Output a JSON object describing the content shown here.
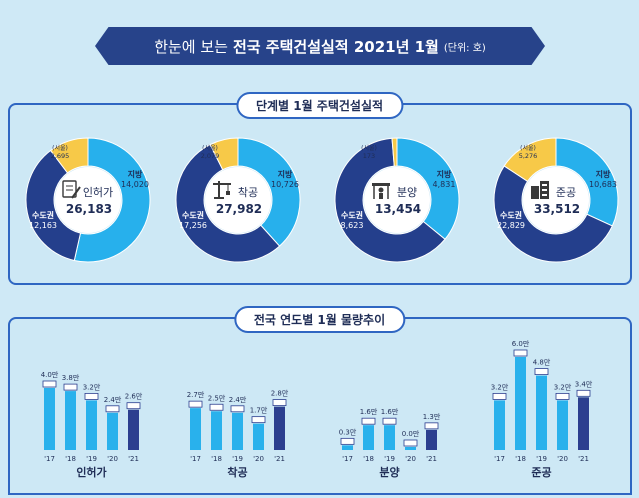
{
  "header": {
    "title_prefix": "한눈에 보는",
    "title_main": "전국 주택건설실적 2021년 1월",
    "unit": "(단위: 호)"
  },
  "sections": {
    "stage_title": "단계별 1월 주택건설실적",
    "trend_title": "전국 연도별 1월 물량추이"
  },
  "colors": {
    "sudo": "#243f8c",
    "jibang": "#27b0ec",
    "seoul": "#f7c948",
    "bar": "#29b1ec",
    "bar_latest": "#2c3f8f"
  },
  "chart_data": [
    {
      "type": "pie",
      "title": "인허가",
      "total": "26,183",
      "icon": "document-pen-icon",
      "slices": [
        {
          "name": "지방",
          "label": "14,020",
          "value": 14020
        },
        {
          "name": "수도권",
          "label": "12,163",
          "value": 9468
        },
        {
          "name": "(서울)",
          "label": "2,695",
          "value": 2695
        }
      ]
    },
    {
      "type": "pie",
      "title": "착공",
      "total": "27,982",
      "icon": "crane-icon",
      "slices": [
        {
          "name": "지방",
          "label": "10,726",
          "value": 10726
        },
        {
          "name": "수도권",
          "label": "17,256",
          "value": 15177
        },
        {
          "name": "(서울)",
          "label": "2,079",
          "value": 2079
        }
      ]
    },
    {
      "type": "pie",
      "title": "분양",
      "total": "13,454",
      "icon": "construction-worker-icon",
      "slices": [
        {
          "name": "지방",
          "label": "4,831",
          "value": 4831
        },
        {
          "name": "수도권",
          "label": "8,623",
          "value": 8450
        },
        {
          "name": "(서울)",
          "label": "173",
          "value": 173
        }
      ]
    },
    {
      "type": "pie",
      "title": "준공",
      "total": "33,512",
      "icon": "building-icon",
      "slices": [
        {
          "name": "지방",
          "label": "10,683",
          "value": 10683
        },
        {
          "name": "수도권",
          "label": "22,829",
          "value": 17553
        },
        {
          "name": "(서울)",
          "label": "5,276",
          "value": 5276
        }
      ]
    },
    {
      "type": "bar",
      "title": "인허가",
      "categories": [
        "'17",
        "'18",
        "'19",
        "'20",
        "'21"
      ],
      "values": [
        4.0,
        3.8,
        3.2,
        2.4,
        2.6
      ],
      "labels": [
        "4.0만",
        "3.8만",
        "3.2만",
        "2.4만",
        "2.6만"
      ]
    },
    {
      "type": "bar",
      "title": "착공",
      "categories": [
        "'17",
        "'18",
        "'19",
        "'20",
        "'21"
      ],
      "values": [
        2.7,
        2.5,
        2.4,
        1.7,
        2.8
      ],
      "labels": [
        "2.7만",
        "2.5만",
        "2.4만",
        "1.7만",
        "2.8만"
      ]
    },
    {
      "type": "bar",
      "title": "분양",
      "categories": [
        "'17",
        "'18",
        "'19",
        "'20",
        "'21"
      ],
      "values": [
        0.3,
        1.6,
        1.6,
        0.0,
        1.3
      ],
      "labels": [
        "0.3만",
        "1.6만",
        "1.6만",
        "0.0만",
        "1.3만"
      ]
    },
    {
      "type": "bar",
      "title": "준공",
      "categories": [
        "'17",
        "'18",
        "'19",
        "'20",
        "'21"
      ],
      "values": [
        3.2,
        6.0,
        4.8,
        3.2,
        3.4
      ],
      "labels": [
        "3.2만",
        "6.0만",
        "4.8만",
        "3.2만",
        "3.4만"
      ]
    }
  ]
}
